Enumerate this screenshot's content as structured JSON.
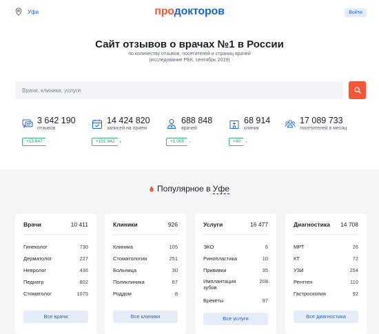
{
  "header": {
    "city": "Уфа",
    "logo_part1": "про",
    "logo_part2": "докторов",
    "login_label": "Войти"
  },
  "hero": {
    "title": "Сайт отзывов о врачах №1 в России",
    "subtitle1": "по количеству отзывов, посетителей и страниц врачей",
    "subtitle2": "(исследование РБК, сентябрь 2019)"
  },
  "search": {
    "placeholder": "Врачи, клиники, услуги",
    "button_icon": "search-icon"
  },
  "stats": [
    {
      "icon": "reviews-icon",
      "value": "3 642 190",
      "label": "отзывов",
      "delta": "+15 847"
    },
    {
      "icon": "calendar-icon",
      "value": "14 424 820",
      "label": "записей на прием",
      "delta": "+101 942"
    },
    {
      "icon": "doctor-icon",
      "value": "688 848",
      "label": "врачей",
      "delta": "+1 005"
    },
    {
      "icon": "clinic-icon",
      "value": "68 914",
      "label": "клиник",
      "delta": "+40"
    },
    {
      "icon": "visitors-icon",
      "value": "17 089 733",
      "label": "посетителей в месяц",
      "delta": ""
    }
  ],
  "popular": {
    "prefix": "Популярное в",
    "city": "Уфе"
  },
  "cards": [
    {
      "title": "Врачи",
      "count": "10 411",
      "rows": [
        {
          "name": "Гинеколог",
          "value": "730"
        },
        {
          "name": "Дерматолог",
          "value": "227"
        },
        {
          "name": "Невролог",
          "value": "436"
        },
        {
          "name": "Педиатр",
          "value": "802"
        },
        {
          "name": "Стоматолог",
          "value": "1075"
        }
      ],
      "button": "Все врачи"
    },
    {
      "title": "Клиники",
      "count": "926",
      "rows": [
        {
          "name": "Клиника",
          "value": "105"
        },
        {
          "name": "Стоматология",
          "value": "251"
        },
        {
          "name": "Больница",
          "value": "30"
        },
        {
          "name": "Поликлиника",
          "value": "67"
        },
        {
          "name": "Роддом",
          "value": "8"
        }
      ],
      "button": "Все клиники"
    },
    {
      "title": "Услуги",
      "count": "16 477",
      "rows": [
        {
          "name": "ЭКО",
          "value": "6"
        },
        {
          "name": "Ринопластика",
          "value": "10"
        },
        {
          "name": "Прививки",
          "value": "35"
        },
        {
          "name": "Имплантация зубов",
          "value": "208"
        },
        {
          "name": "Брекеты",
          "value": "97"
        }
      ],
      "button": "Все услуги"
    },
    {
      "title": "Диагностика",
      "count": "14 708",
      "rows": [
        {
          "name": "МРТ",
          "value": "26"
        },
        {
          "name": "КТ",
          "value": "72"
        },
        {
          "name": "УЗИ",
          "value": "254"
        },
        {
          "name": "Рентген",
          "value": "110"
        },
        {
          "name": "Гастроскопия",
          "value": "92"
        }
      ],
      "button": "Все диагностика"
    }
  ],
  "colors": {
    "accent_red": "#f4563a",
    "accent_blue": "#1a64d6",
    "green": "#36b27a"
  }
}
